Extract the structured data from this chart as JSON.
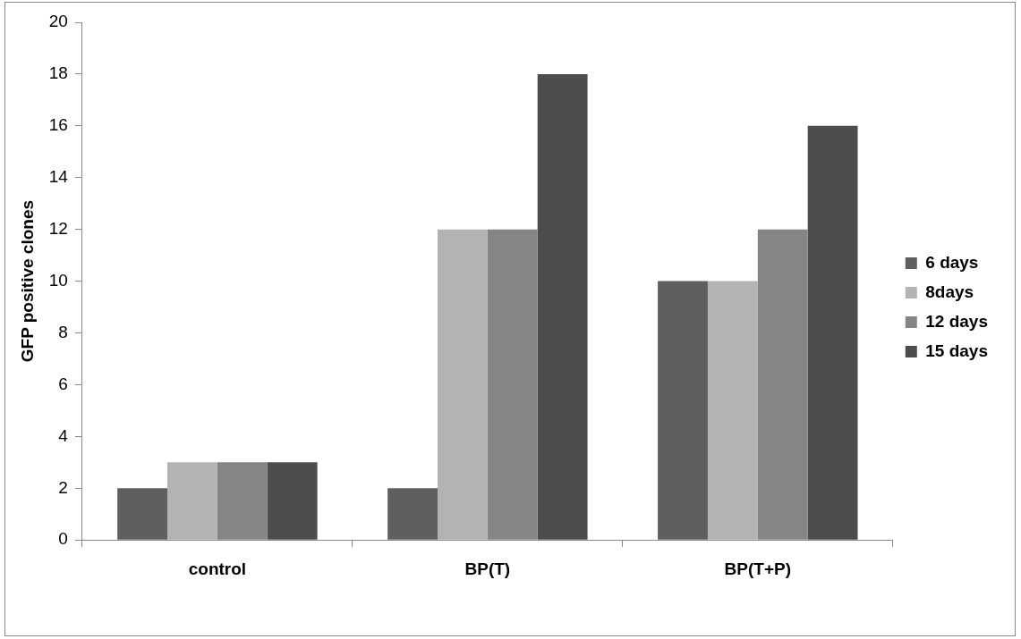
{
  "chart_data": {
    "type": "bar",
    "ylabel": "GFP positive clones",
    "categories": [
      "control",
      "BP(T)",
      "BP(T+P)"
    ],
    "series": [
      {
        "name": "6 days",
        "color": "#5f5f5f",
        "values": [
          2,
          2,
          10
        ]
      },
      {
        "name": "8days",
        "color": "#b3b3b3",
        "values": [
          3,
          12,
          10
        ]
      },
      {
        "name": "12 days",
        "color": "#858585",
        "values": [
          3,
          12,
          12
        ]
      },
      {
        "name": "15 days",
        "color": "#4d4d4d",
        "values": [
          3,
          18,
          16
        ]
      }
    ],
    "ylim": [
      0,
      20
    ],
    "yticks": [
      0,
      2,
      4,
      6,
      8,
      10,
      12,
      14,
      16,
      18,
      20
    ],
    "grid": false,
    "legend": "right"
  }
}
